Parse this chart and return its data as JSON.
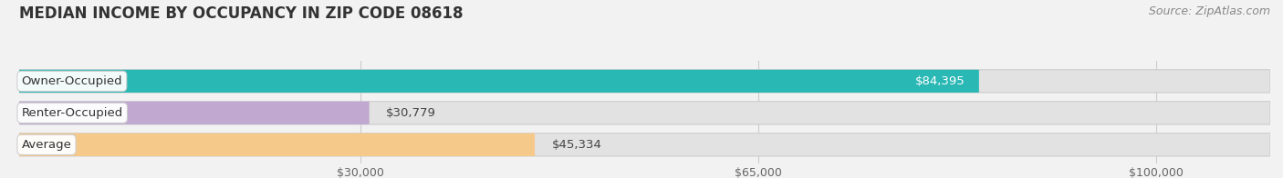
{
  "title": "MEDIAN INCOME BY OCCUPANCY IN ZIP CODE 08618",
  "source": "Source: ZipAtlas.com",
  "categories": [
    "Owner-Occupied",
    "Renter-Occupied",
    "Average"
  ],
  "values": [
    84395,
    30779,
    45334
  ],
  "bar_colors": [
    "#2ab8b5",
    "#c0a8d0",
    "#f5c98a"
  ],
  "value_labels": [
    "$84,395",
    "$30,779",
    "$45,334"
  ],
  "x_ticks": [
    30000,
    65000,
    100000
  ],
  "x_tick_labels": [
    "$30,000",
    "$65,000",
    "$100,000"
  ],
  "xmin": 0,
  "xmax": 110000,
  "background_color": "#f2f2f2",
  "bar_background_color": "#e2e2e2",
  "bar_height": 0.72,
  "title_fontsize": 12,
  "source_fontsize": 9,
  "label_fontsize": 9.5,
  "value_fontsize": 9.5,
  "tick_fontsize": 9
}
